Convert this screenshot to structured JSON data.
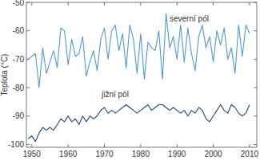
{
  "chart_data": {
    "type": "line",
    "y_label": "Teplota (°C)",
    "x": [
      1949,
      1950,
      1951,
      1952,
      1953,
      1954,
      1955,
      1956,
      1957,
      1958,
      1959,
      1960,
      1961,
      1962,
      1963,
      1964,
      1965,
      1966,
      1967,
      1968,
      1969,
      1970,
      1971,
      1972,
      1973,
      1974,
      1975,
      1976,
      1977,
      1978,
      1979,
      1980,
      1981,
      1982,
      1983,
      1984,
      1985,
      1986,
      1987,
      1988,
      1989,
      1990,
      1991,
      1992,
      1993,
      1994,
      1995,
      1996,
      1997,
      1998,
      1999,
      2000,
      2001,
      2002,
      2003,
      2004,
      2005,
      2006,
      2007,
      2008,
      2009,
      2010
    ],
    "series": [
      {
        "name": "severní pól",
        "color": "#4f9ad3",
        "values": [
          -70,
          -69,
          -68,
          -80,
          -66,
          -75,
          -71,
          -67,
          -73,
          -59,
          -60,
          -72,
          -63,
          -69,
          -68,
          -62,
          -76,
          -71,
          -67,
          -74,
          -63,
          -59,
          -70,
          -60,
          -58,
          -67,
          -61,
          -73,
          -58,
          -63,
          -75,
          -61,
          -77,
          -64,
          -66,
          -67,
          -60,
          -77,
          -54,
          -66,
          -62,
          -70,
          -58,
          -71,
          -59,
          -68,
          -74,
          -62,
          -58,
          -66,
          -62,
          -71,
          -60,
          -65,
          -59,
          -70,
          -66,
          -75,
          -58,
          -69,
          -58,
          -61
        ]
      },
      {
        "name": "jižní pól",
        "color": "#1f4a7a",
        "values": [
          -98,
          -97,
          -99,
          -96,
          -94,
          -95,
          -94,
          -95,
          -93,
          -91,
          -92,
          -90,
          -92,
          -91,
          -93,
          -90,
          -92,
          -90,
          -91,
          -90,
          -88,
          -87,
          -89,
          -88,
          -89,
          -88,
          -87,
          -86,
          -87,
          -88,
          -89,
          -88,
          -87,
          -86,
          -88,
          -87,
          -86,
          -86,
          -87,
          -88,
          -87,
          -88,
          -89,
          -88,
          -90,
          -88,
          -89,
          -87,
          -88,
          -91,
          -92,
          -90,
          -88,
          -86,
          -88,
          -89,
          -86,
          -87,
          -89,
          -90,
          -89,
          -86
        ]
      }
    ],
    "xlim": [
      1948.5,
      2012
    ],
    "xticks": [
      1950,
      1960,
      1970,
      1980,
      1990,
      2000,
      2010
    ],
    "ylim": [
      -101,
      -50
    ],
    "yticks": [
      -100,
      -90,
      -80,
      -70,
      -60,
      -50
    ],
    "grid": false
  }
}
